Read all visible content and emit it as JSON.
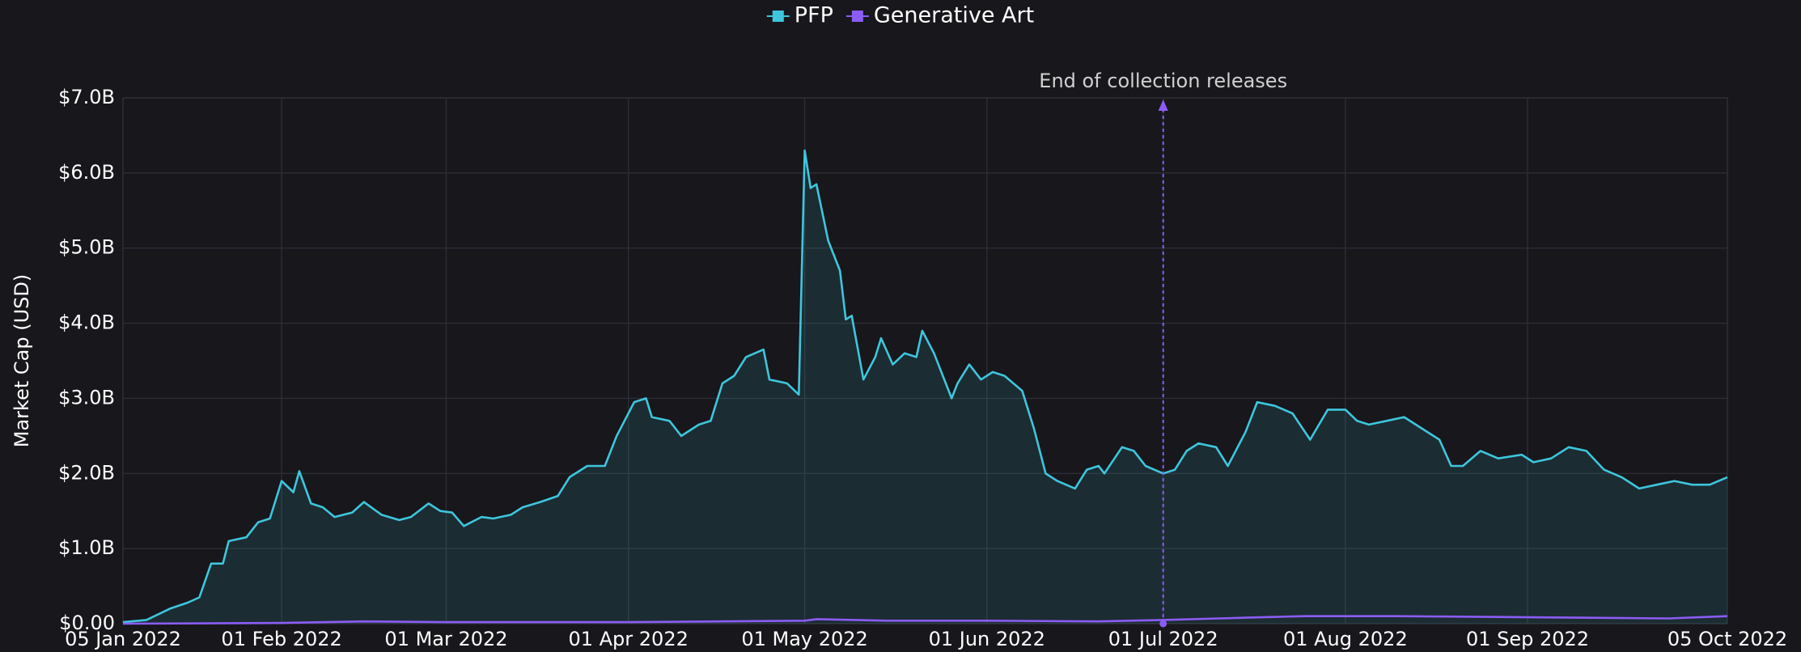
{
  "chart_data": {
    "type": "line",
    "ylabel": "Market Cap (USD)",
    "annotations": [
      {
        "x": "2022-07-01",
        "text": "End of collection releases",
        "color": "#8b5cf6"
      }
    ],
    "xlim": [
      "2022-01-05",
      "2022-10-05"
    ],
    "xticks": [
      {
        "value": "2022-01-05",
        "label": "05 Jan 2022"
      },
      {
        "value": "2022-02-01",
        "label": "01 Feb 2022"
      },
      {
        "value": "2022-03-01",
        "label": "01 Mar 2022"
      },
      {
        "value": "2022-04-01",
        "label": "01 Apr 2022"
      },
      {
        "value": "2022-05-01",
        "label": "01 May 2022"
      },
      {
        "value": "2022-06-01",
        "label": "01 Jun 2022"
      },
      {
        "value": "2022-07-01",
        "label": "01 Jul 2022"
      },
      {
        "value": "2022-08-01",
        "label": "01 Aug 2022"
      },
      {
        "value": "2022-09-01",
        "label": "01 Sep 2022"
      },
      {
        "value": "2022-10-05",
        "label": "05 Oct 2022"
      }
    ],
    "ylim": [
      0,
      7
    ],
    "yticks": [
      {
        "value": 0,
        "label": "$0.00"
      },
      {
        "value": 1,
        "label": "$1.0B"
      },
      {
        "value": 2,
        "label": "$2.0B"
      },
      {
        "value": 3,
        "label": "$3.0B"
      },
      {
        "value": 4,
        "label": "$4.0B"
      },
      {
        "value": 5,
        "label": "$5.0B"
      },
      {
        "value": 6,
        "label": "$6.0B"
      },
      {
        "value": 7,
        "label": "$7.0B"
      }
    ],
    "grid": true,
    "legend": "top",
    "series": [
      {
        "name": "PFP",
        "color": "#3ec6dc",
        "fill": true,
        "x": [
          "2022-01-05",
          "2022-01-09",
          "2022-01-13",
          "2022-01-16",
          "2022-01-18",
          "2022-01-20",
          "2022-01-22",
          "2022-01-23",
          "2022-01-26",
          "2022-01-28",
          "2022-01-30",
          "2022-02-01",
          "2022-02-03",
          "2022-02-04",
          "2022-02-06",
          "2022-02-08",
          "2022-02-10",
          "2022-02-13",
          "2022-02-15",
          "2022-02-18",
          "2022-02-21",
          "2022-02-23",
          "2022-02-26",
          "2022-02-28",
          "2022-03-02",
          "2022-03-04",
          "2022-03-07",
          "2022-03-09",
          "2022-03-12",
          "2022-03-14",
          "2022-03-17",
          "2022-03-20",
          "2022-03-22",
          "2022-03-25",
          "2022-03-28",
          "2022-03-30",
          "2022-04-02",
          "2022-04-04",
          "2022-04-05",
          "2022-04-08",
          "2022-04-10",
          "2022-04-13",
          "2022-04-15",
          "2022-04-17",
          "2022-04-19",
          "2022-04-21",
          "2022-04-24",
          "2022-04-25",
          "2022-04-28",
          "2022-04-30",
          "2022-05-01",
          "2022-05-02",
          "2022-05-03",
          "2022-05-05",
          "2022-05-07",
          "2022-05-08",
          "2022-05-09",
          "2022-05-11",
          "2022-05-13",
          "2022-05-14",
          "2022-05-16",
          "2022-05-18",
          "2022-05-20",
          "2022-05-21",
          "2022-05-23",
          "2022-05-26",
          "2022-05-27",
          "2022-05-29",
          "2022-05-31",
          "2022-06-02",
          "2022-06-04",
          "2022-06-07",
          "2022-06-09",
          "2022-06-11",
          "2022-06-13",
          "2022-06-16",
          "2022-06-18",
          "2022-06-20",
          "2022-06-21",
          "2022-06-24",
          "2022-06-26",
          "2022-06-28",
          "2022-07-01",
          "2022-07-03",
          "2022-07-05",
          "2022-07-07",
          "2022-07-10",
          "2022-07-12",
          "2022-07-15",
          "2022-07-17",
          "2022-07-20",
          "2022-07-23",
          "2022-07-26",
          "2022-07-29",
          "2022-08-01",
          "2022-08-03",
          "2022-08-05",
          "2022-08-08",
          "2022-08-11",
          "2022-08-14",
          "2022-08-17",
          "2022-08-19",
          "2022-08-21",
          "2022-08-24",
          "2022-08-27",
          "2022-08-31",
          "2022-09-02",
          "2022-09-05",
          "2022-09-08",
          "2022-09-11",
          "2022-09-14",
          "2022-09-17",
          "2022-09-20",
          "2022-09-23",
          "2022-09-26",
          "2022-09-29",
          "2022-10-02",
          "2022-10-05"
        ],
        "values": [
          0.02,
          0.05,
          0.2,
          0.28,
          0.35,
          0.8,
          0.8,
          1.1,
          1.15,
          1.35,
          1.4,
          1.9,
          1.75,
          2.03,
          1.6,
          1.55,
          1.42,
          1.48,
          1.62,
          1.45,
          1.38,
          1.42,
          1.6,
          1.5,
          1.48,
          1.3,
          1.42,
          1.4,
          1.45,
          1.55,
          1.62,
          1.7,
          1.95,
          2.1,
          2.1,
          2.5,
          2.95,
          3.0,
          2.75,
          2.7,
          2.5,
          2.65,
          2.7,
          3.2,
          3.3,
          3.55,
          3.65,
          3.25,
          3.2,
          3.05,
          6.3,
          5.8,
          5.85,
          5.1,
          4.7,
          4.05,
          4.1,
          3.25,
          3.55,
          3.8,
          3.45,
          3.6,
          3.55,
          3.9,
          3.6,
          3.0,
          3.2,
          3.45,
          3.25,
          3.35,
          3.3,
          3.1,
          2.6,
          2.0,
          1.9,
          1.8,
          2.05,
          2.1,
          2.0,
          2.35,
          2.3,
          2.1,
          2.0,
          2.05,
          2.3,
          2.4,
          2.35,
          2.1,
          2.55,
          2.95,
          2.9,
          2.8,
          2.45,
          2.85,
          2.85,
          2.7,
          2.65,
          2.7,
          2.75,
          2.6,
          2.45,
          2.1,
          2.1,
          2.3,
          2.2,
          2.25,
          2.15,
          2.2,
          2.35,
          2.3,
          2.05,
          1.95,
          1.8,
          1.85,
          1.9,
          1.85,
          1.85,
          1.95
        ]
      },
      {
        "name": "Generative Art",
        "color": "#8b5cf6",
        "fill": false,
        "x": [
          "2022-01-05",
          "2022-02-01",
          "2022-02-15",
          "2022-03-01",
          "2022-04-01",
          "2022-05-01",
          "2022-05-03",
          "2022-05-15",
          "2022-06-01",
          "2022-06-20",
          "2022-07-01",
          "2022-07-15",
          "2022-07-25",
          "2022-08-10",
          "2022-08-25",
          "2022-09-10",
          "2022-09-25",
          "2022-10-05"
        ],
        "values": [
          0.0,
          0.01,
          0.03,
          0.02,
          0.02,
          0.04,
          0.06,
          0.04,
          0.04,
          0.03,
          0.05,
          0.08,
          0.1,
          0.1,
          0.09,
          0.08,
          0.07,
          0.1
        ]
      }
    ]
  }
}
